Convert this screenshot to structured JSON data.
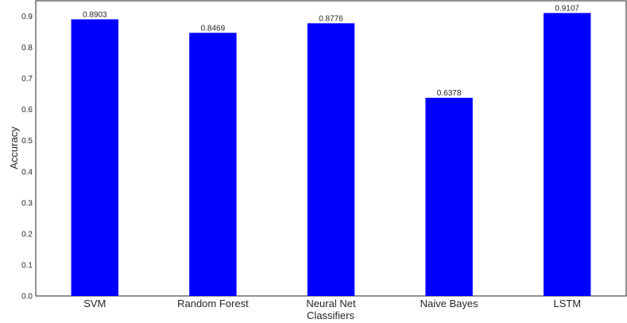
{
  "chart_data": {
    "type": "bar",
    "categories": [
      "SVM",
      "Random Forest",
      "Neural Net",
      "Naive Bayes",
      "LSTM"
    ],
    "values": [
      0.8903,
      0.8469,
      0.8776,
      0.6378,
      0.9107
    ],
    "value_labels": [
      "0.8903",
      "0.8469",
      "0.8776",
      "0.6378",
      "0.9107"
    ],
    "xlabel": "Classifiers",
    "ylabel": "Accuracy",
    "ylim": [
      0,
      0.95
    ],
    "yticks": [
      0.0,
      0.1,
      0.2,
      0.3,
      0.4,
      0.5,
      0.6,
      0.7,
      0.8,
      0.9
    ],
    "ytick_labels": [
      "0.0",
      "0.1",
      "0.2",
      "0.3",
      "0.4",
      "0.5",
      "0.6",
      "0.7",
      "0.8",
      "0.9"
    ],
    "bar_color": "#0000ff",
    "grid": false,
    "legend": false
  }
}
